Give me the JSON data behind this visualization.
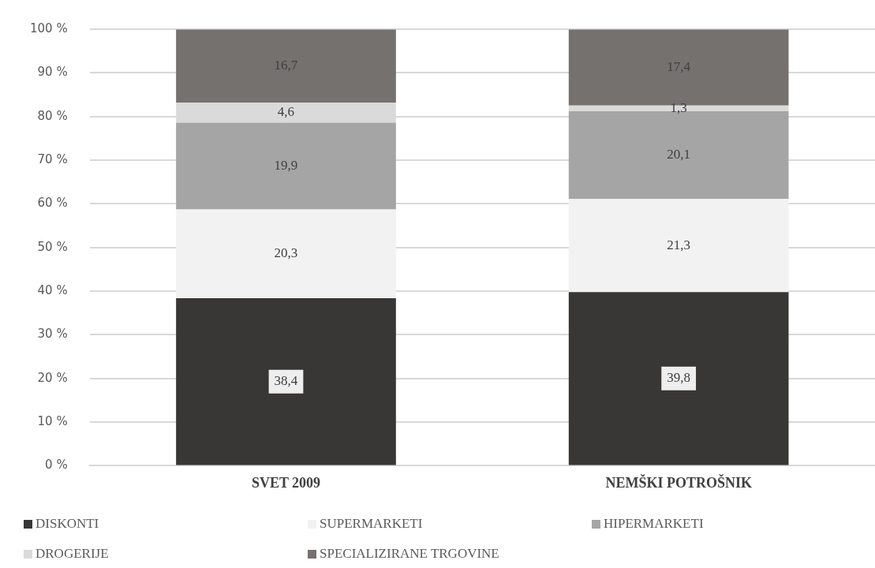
{
  "chart_data": {
    "type": "bar",
    "stacked": true,
    "categories": [
      "SVET 2009",
      "NEMŠKI POTROŠNIK"
    ],
    "series": [
      {
        "name": "DISKONTI",
        "color": "#393735",
        "values": [
          38.4,
          39.8
        ],
        "value_labels": [
          "38,4",
          "39,8"
        ]
      },
      {
        "name": "SUPERMARKETI",
        "color": "#f2f2f2",
        "values": [
          20.3,
          21.3
        ],
        "value_labels": [
          "20,3",
          "21,3"
        ]
      },
      {
        "name": "HIPERMARKETI",
        "color": "#a5a5a5",
        "values": [
          19.9,
          20.1
        ],
        "value_labels": [
          "19,9",
          "20,1"
        ]
      },
      {
        "name": "DROGERIJE",
        "color": "#dadada",
        "values": [
          4.6,
          1.3
        ],
        "value_labels": [
          "4,6",
          "1,3"
        ]
      },
      {
        "name": "SPECIALIZIRANE TRGOVINE",
        "color": "#75716f",
        "values": [
          16.7,
          17.4
        ],
        "value_labels": [
          "16,7",
          "17,4"
        ]
      }
    ],
    "ylim": [
      0,
      100
    ],
    "yticks": [
      {
        "value": 0,
        "label": "0 %"
      },
      {
        "value": 10,
        "label": "10 %"
      },
      {
        "value": 20,
        "label": "20 %"
      },
      {
        "value": 30,
        "label": "30 %"
      },
      {
        "value": 40,
        "label": "40 %"
      },
      {
        "value": 50,
        "label": "50 %"
      },
      {
        "value": 60,
        "label": "60 %"
      },
      {
        "value": 70,
        "label": "70 %"
      },
      {
        "value": 80,
        "label": "80 %"
      },
      {
        "value": 90,
        "label": "90 %"
      },
      {
        "value": 100,
        "label": "100 %"
      }
    ],
    "grid": "y",
    "legend": "bottom"
  }
}
